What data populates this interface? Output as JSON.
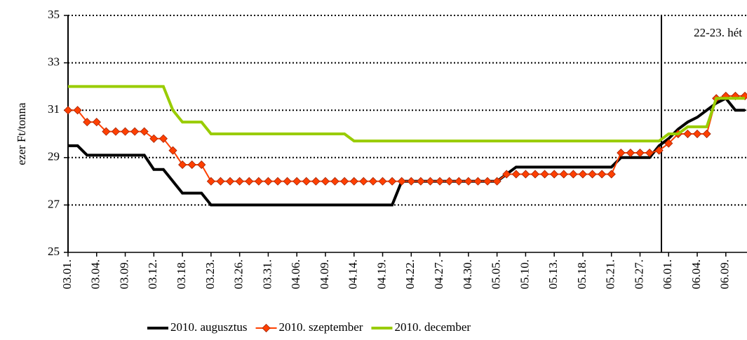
{
  "chart_data": {
    "type": "line",
    "y_label": "ezer Ft/tonna",
    "annotation": "22-23. hét",
    "categories": [
      "03.01.",
      null,
      null,
      "03.04.",
      null,
      null,
      "03.09.",
      null,
      null,
      "03.12.",
      null,
      null,
      "03.18.",
      null,
      null,
      "03.23.",
      null,
      null,
      "03.26.",
      null,
      null,
      "03.31.",
      null,
      null,
      "04.06.",
      null,
      null,
      "04.09.",
      null,
      null,
      "04.14.",
      null,
      null,
      "04.19.",
      null,
      null,
      "04.22.",
      null,
      null,
      "04.27.",
      null,
      null,
      "04.30.",
      null,
      null,
      "05.05.",
      null,
      null,
      "05.10.",
      null,
      null,
      "05.13.",
      null,
      null,
      "05.18.",
      null,
      null,
      "05.21.",
      null,
      null,
      "05.27.",
      null,
      null,
      "06.01.",
      null,
      null,
      "06.04.",
      null,
      null,
      "06.09.",
      null,
      null
    ],
    "series": [
      {
        "name": "2010. augusztus",
        "color": "#000000",
        "marker": false,
        "values": [
          29.5,
          29.5,
          29.1,
          29.1,
          29.1,
          29.1,
          29.1,
          29.1,
          29.1,
          28.5,
          28.5,
          28.0,
          27.5,
          27.5,
          27.5,
          27.0,
          27.0,
          27.0,
          27.0,
          27.0,
          27.0,
          27.0,
          27.0,
          27.0,
          27.0,
          27.0,
          27.0,
          27.0,
          27.0,
          27.0,
          27.0,
          27.0,
          27.0,
          27.0,
          27.0,
          28.0,
          28.0,
          28.0,
          28.0,
          28.0,
          28.0,
          28.0,
          28.0,
          28.0,
          28.0,
          28.0,
          28.3,
          28.6,
          28.6,
          28.6,
          28.6,
          28.6,
          28.6,
          28.6,
          28.6,
          28.6,
          28.6,
          28.6,
          29.0,
          29.0,
          29.0,
          29.0,
          29.5,
          29.8,
          30.2,
          30.5,
          30.7,
          31.0,
          31.3,
          31.5,
          31.0,
          31.0
        ]
      },
      {
        "name": "2010. szeptember",
        "color": "#ff4000",
        "marker": true,
        "values": [
          31.0,
          31.0,
          30.5,
          30.5,
          30.1,
          30.1,
          30.1,
          30.1,
          30.1,
          29.8,
          29.8,
          29.3,
          28.7,
          28.7,
          28.7,
          28.0,
          28.0,
          28.0,
          28.0,
          28.0,
          28.0,
          28.0,
          28.0,
          28.0,
          28.0,
          28.0,
          28.0,
          28.0,
          28.0,
          28.0,
          28.0,
          28.0,
          28.0,
          28.0,
          28.0,
          28.0,
          28.0,
          28.0,
          28.0,
          28.0,
          28.0,
          28.0,
          28.0,
          28.0,
          28.0,
          28.0,
          28.3,
          28.3,
          28.3,
          28.3,
          28.3,
          28.3,
          28.3,
          28.3,
          28.3,
          28.3,
          28.3,
          28.3,
          29.2,
          29.2,
          29.2,
          29.2,
          29.3,
          29.6,
          30.0,
          30.0,
          30.0,
          30.0,
          31.5,
          31.6,
          31.6,
          31.6
        ]
      },
      {
        "name": "2010. december",
        "color": "#99cc00",
        "marker": false,
        "values": [
          32.0,
          32.0,
          32.0,
          32.0,
          32.0,
          32.0,
          32.0,
          32.0,
          32.0,
          32.0,
          32.0,
          31.0,
          30.5,
          30.5,
          30.5,
          30.0,
          30.0,
          30.0,
          30.0,
          30.0,
          30.0,
          30.0,
          30.0,
          30.0,
          30.0,
          30.0,
          30.0,
          30.0,
          30.0,
          30.0,
          29.7,
          29.7,
          29.7,
          29.7,
          29.7,
          29.7,
          29.7,
          29.7,
          29.7,
          29.7,
          29.7,
          29.7,
          29.7,
          29.7,
          29.7,
          29.7,
          29.7,
          29.7,
          29.7,
          29.7,
          29.7,
          29.7,
          29.7,
          29.7,
          29.7,
          29.7,
          29.7,
          29.7,
          29.7,
          29.7,
          29.7,
          29.7,
          29.7,
          30.0,
          30.0,
          30.3,
          30.3,
          30.3,
          31.5,
          31.5,
          31.5,
          31.5
        ]
      }
    ],
    "ylim": [
      25,
      35
    ],
    "yticks": [
      25,
      27,
      29,
      31,
      33,
      35
    ],
    "grid": true,
    "legend": "bottom"
  }
}
